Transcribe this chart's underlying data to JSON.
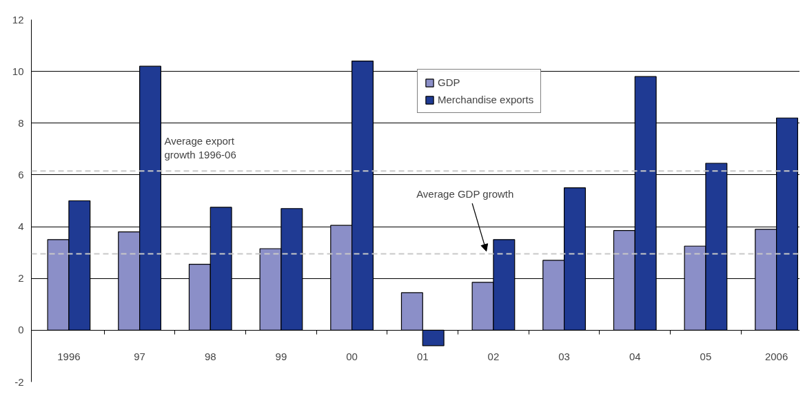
{
  "chart_data": {
    "type": "bar",
    "categories": [
      "1996",
      "97",
      "98",
      "99",
      "00",
      "01",
      "02",
      "03",
      "04",
      "05",
      "2006"
    ],
    "series": [
      {
        "name": "GDP",
        "color": "#8b8fc8",
        "values": [
          3.5,
          3.8,
          2.55,
          3.15,
          4.05,
          1.45,
          1.85,
          2.7,
          3.85,
          3.25,
          3.9
        ]
      },
      {
        "name": "Merchandise exports",
        "color": "#1f3a93",
        "values": [
          5.0,
          10.2,
          4.75,
          4.7,
          10.4,
          -0.6,
          3.5,
          5.5,
          9.8,
          6.45,
          8.2
        ]
      }
    ],
    "ylim": [
      -2,
      12
    ],
    "yticks": [
      -2,
      0,
      2,
      4,
      6,
      8,
      10,
      12
    ],
    "grid": "y",
    "legend": "top",
    "ref_lines": [
      {
        "axis": "y",
        "value": 6.15,
        "label": "Average export growth 1996-06",
        "color": "#c8c8c8",
        "line_style": "dashed"
      },
      {
        "axis": "y",
        "value": 2.95,
        "label": "Average GDP growth",
        "color": "#c8c8c8",
        "line_style": "dashed"
      }
    ]
  }
}
